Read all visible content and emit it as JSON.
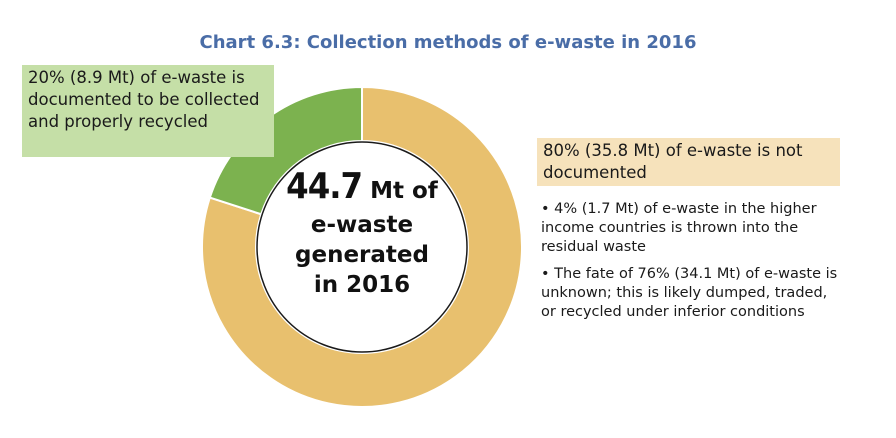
{
  "chart_data": {
    "type": "pie",
    "title": "Chart 6.3: Collection methods of e-waste in 2016",
    "center_label": {
      "value": "44.7",
      "unit_line": "Mt of",
      "line2": "e-waste",
      "line3": "generated",
      "line4": "in 2016"
    },
    "slices": [
      {
        "name": "documented",
        "percent": 20,
        "value_mt": 8.9,
        "color": "#7cb24f",
        "label": "20% (8.9 Mt) of e-waste is documented to be collected and properly recycled"
      },
      {
        "name": "not-documented",
        "percent": 80,
        "value_mt": 35.8,
        "color": "#e8c06e",
        "label": "80% (35.8 Mt) of e-waste is not documented"
      }
    ],
    "notes": [
      "• 4% (1.7 Mt) of e-waste in the higher income countries is thrown into the residual waste",
      "• The fate of 76% (34.1 Mt) of e-waste is unknown; this is likely dumped, traded, or recycled under inferior conditions"
    ]
  }
}
